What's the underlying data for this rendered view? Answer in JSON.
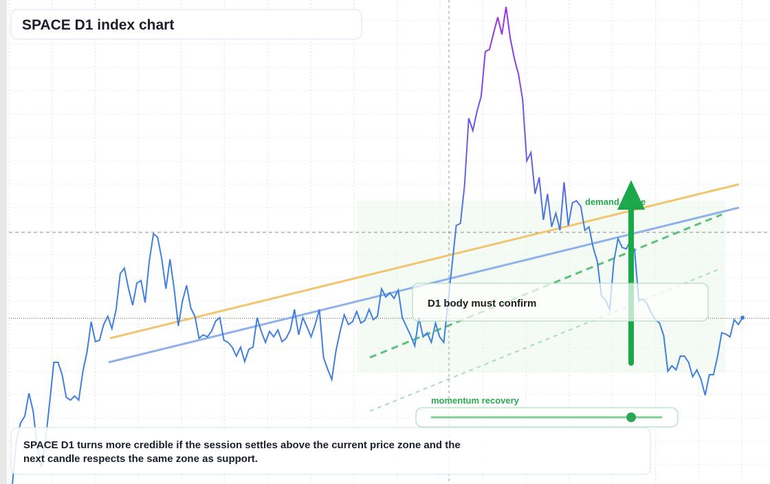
{
  "chart_data": {
    "type": "line",
    "title": "SPACE D1 index chart",
    "annotations": [
      "demand guide",
      "D1 body must confirm",
      "momentum recovery"
    ],
    "caption": "SPACE D1 turns more credible if the session settles above the current price zone and the next candle respects the same zone as support.",
    "ylim": [
      0,
      704
    ],
    "color": "#3f7fdc",
    "peak_color": "#9b30e8",
    "values": [
      0,
      64,
      89,
      99,
      132,
      106,
      54,
      24,
      64,
      119,
      177,
      177,
      159,
      126,
      122,
      128,
      122,
      164,
      192,
      236,
      207,
      209,
      232,
      244,
      226,
      254,
      306,
      314,
      284,
      260,
      292,
      296,
      264,
      324,
      364,
      359,
      328,
      284,
      327,
      284,
      230,
      266,
      289,
      256,
      244,
      212,
      217,
      214,
      222,
      237,
      242,
      209,
      206,
      199,
      186,
      199,
      178,
      196,
      199,
      242,
      222,
      206,
      222,
      214,
      224,
      207,
      212,
      224,
      254,
      217,
      242,
      229,
      214,
      232,
      254,
      184,
      167,
      152,
      194,
      222,
      246,
      232,
      236,
      251,
      234,
      238,
      254,
      239,
      244,
      284,
      272,
      278,
      270,
      282,
      242,
      229,
      216,
      201,
      242,
      214,
      220,
      206,
      234,
      214,
      206,
      264,
      319,
      376,
      379,
      434,
      532,
      514,
      542,
      564,
      629,
      632,
      656,
      679,
      654,
      694,
      649,
      619,
      596,
      559,
      470,
      482,
      422,
      446,
      384,
      422,
      374,
      394,
      369,
      439,
      376,
      409,
      412,
      404,
      369,
      374,
      344,
      324,
      274,
      267,
      254,
      324,
      357,
      344,
      342,
      354,
      339,
      267,
      269,
      262,
      249,
      239,
      234,
      216,
      164,
      172,
      166,
      186,
      186,
      177,
      156,
      166,
      152,
      129,
      159,
      159,
      186,
      220,
      218,
      214,
      239,
      232,
      242
    ]
  }
}
